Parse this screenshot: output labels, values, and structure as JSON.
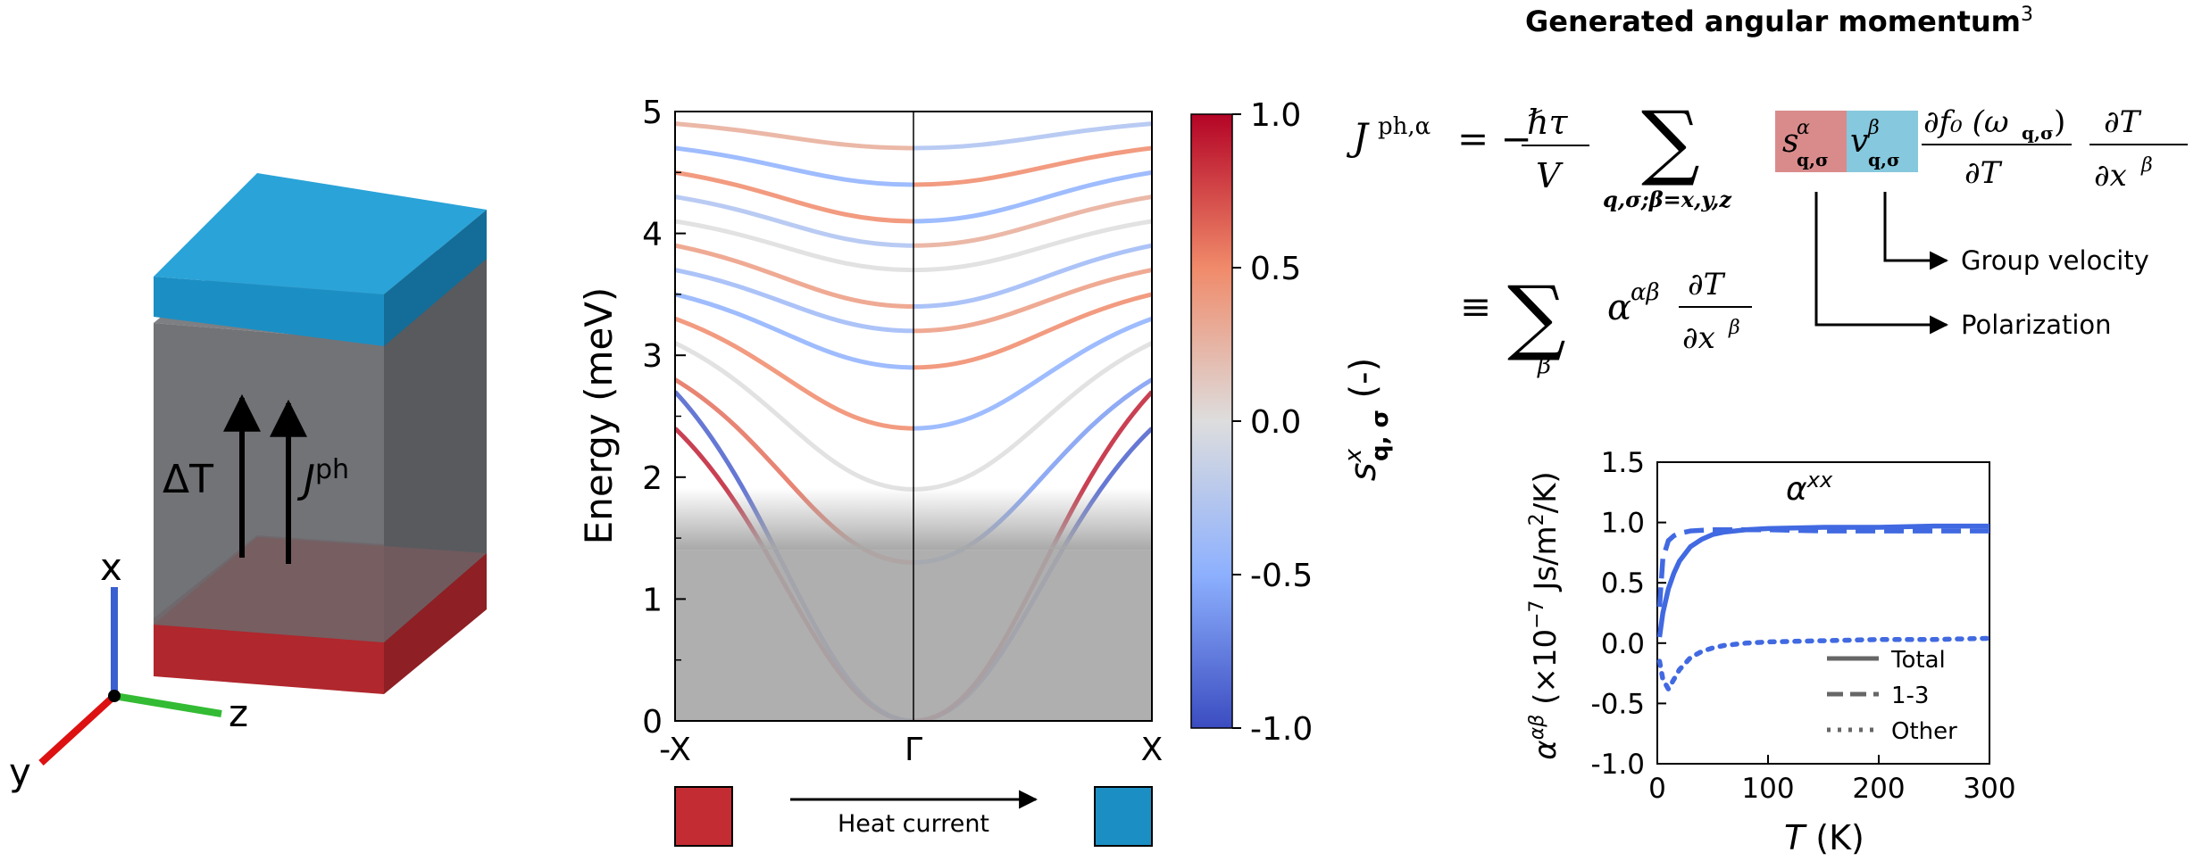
{
  "colors": {
    "hot_reservoir": "#c42c33",
    "cold_reservoir": "#1b8fc4",
    "sample_gray": "#6a6c70",
    "axis_x": "#3a5fd0",
    "axis_z": "#33bb33",
    "axis_y": "#dd1111",
    "spin_highlight": "#d98b8b",
    "velocity_highlight": "#86c8dd",
    "alpha_curve": "#4169e1"
  },
  "schematic": {
    "delta_t": "ΔT",
    "j_ph_base": "J",
    "j_ph_sup": "ph",
    "axis_x_label": "x",
    "axis_y_label": "y",
    "axis_z_label": "z"
  },
  "dispersion": {
    "ylabel": "Energy (meV)",
    "yticks": [
      "0",
      "1",
      "2",
      "3",
      "4",
      "5"
    ],
    "xticks": [
      "-X",
      "Γ",
      "X"
    ],
    "ylim": [
      0,
      5
    ],
    "shaded_below_meV": 1.4,
    "colorbar": {
      "ticks": [
        "1.0",
        "0.5",
        "0.0",
        "-0.5",
        "-1.0"
      ],
      "label_base": "s",
      "label_sup": "x",
      "label_sub": "q, σ",
      "label_rest": " (-)"
    },
    "heat_current_label": "Heat current",
    "chart_data": {
      "type": "line",
      "title": "",
      "xlabel": "",
      "ylabel": "Energy (meV)",
      "x": [
        "-X",
        "Γ",
        "X"
      ],
      "ylim": [
        0,
        5
      ],
      "colorbar_range": [
        -1.0,
        1.0
      ],
      "series": [
        {
          "values": [
            2.4,
            0.0,
            2.4
          ],
          "polarization": 0.9
        },
        {
          "values": [
            2.7,
            0.0,
            2.7
          ],
          "polarization": -0.9
        },
        {
          "values": [
            2.8,
            1.3,
            2.8
          ],
          "polarization": 0.6
        },
        {
          "values": [
            3.1,
            1.9,
            3.1
          ],
          "polarization": 0.0
        },
        {
          "values": [
            3.3,
            2.4,
            3.3
          ],
          "polarization": 0.5
        },
        {
          "values": [
            3.5,
            2.9,
            3.5
          ],
          "polarization": -0.5
        },
        {
          "values": [
            3.7,
            3.2,
            3.7
          ],
          "polarization": -0.4
        },
        {
          "values": [
            3.9,
            3.4,
            3.9
          ],
          "polarization": 0.4
        },
        {
          "values": [
            4.1,
            3.7,
            4.1
          ],
          "polarization": 0.0
        },
        {
          "values": [
            4.3,
            3.9,
            4.3
          ],
          "polarization": -0.3
        },
        {
          "values": [
            4.5,
            4.1,
            4.5
          ],
          "polarization": 0.5
        },
        {
          "values": [
            4.7,
            4.4,
            4.7
          ],
          "polarization": -0.5
        },
        {
          "values": [
            4.9,
            4.7,
            4.9
          ],
          "polarization": 0.3
        }
      ]
    }
  },
  "equation": {
    "title": "Generated angular momentum",
    "title_ref": "3",
    "group_velocity": "Group velocity",
    "polarization": "Polarization"
  },
  "alpha_plot": {
    "chart_data": {
      "type": "line",
      "title": "α^xx",
      "xlabel": "T (K)",
      "ylabel": "α^αβ (×10^-7 Js/m²/K)",
      "xlim": [
        0,
        300
      ],
      "ylim": [
        -1.0,
        1.5
      ],
      "xticks": [
        "0",
        "100",
        "200",
        "300"
      ],
      "yticks": [
        "1.5",
        "1.0",
        "0.5",
        "0.0",
        "-0.5",
        "-1.0"
      ],
      "legend_position": "lower-right",
      "series": [
        {
          "name": "Total",
          "style": "solid",
          "x": [
            2,
            5,
            10,
            15,
            20,
            30,
            40,
            50,
            60,
            80,
            100,
            150,
            200,
            250,
            300
          ],
          "values": [
            0.05,
            0.25,
            0.45,
            0.58,
            0.68,
            0.8,
            0.86,
            0.9,
            0.92,
            0.94,
            0.95,
            0.96,
            0.96,
            0.97,
            0.97
          ]
        },
        {
          "name": "1-3",
          "style": "dashed",
          "x": [
            2,
            5,
            10,
            15,
            20,
            30,
            40,
            50,
            60,
            80,
            100,
            150,
            200,
            250,
            300
          ],
          "values": [
            0.3,
            0.7,
            0.85,
            0.89,
            0.91,
            0.93,
            0.935,
            0.94,
            0.94,
            0.94,
            0.94,
            0.93,
            0.93,
            0.93,
            0.93
          ]
        },
        {
          "name": "Other",
          "style": "dotted",
          "x": [
            2,
            5,
            10,
            15,
            20,
            30,
            40,
            50,
            60,
            80,
            100,
            150,
            200,
            250,
            300
          ],
          "values": [
            -0.15,
            -0.3,
            -0.38,
            -0.3,
            -0.22,
            -0.12,
            -0.07,
            -0.04,
            -0.02,
            0.0,
            0.01,
            0.02,
            0.03,
            0.03,
            0.04
          ]
        }
      ],
      "legend": [
        "Total",
        "1-3",
        "Other"
      ],
      "title_base": "α",
      "title_sup": "xx",
      "ylabel_base": "α",
      "ylabel_sup": "αβ",
      "ylabel_rest": " (×10",
      "ylabel_exp": "−7",
      "ylabel_unit": " Js/m",
      "ylabel_unit_sup": "2",
      "ylabel_tail": "/K)",
      "xlabel_base": "T",
      "xlabel_rest": " (K)"
    }
  }
}
